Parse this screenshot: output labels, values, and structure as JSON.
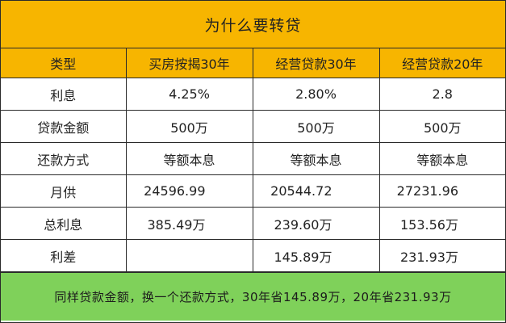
{
  "title": "为什么要转贷",
  "table": {
    "headers": [
      "类型",
      "买房按揭30年",
      "经营贷款30年",
      "经营贷款20年"
    ],
    "rows": [
      [
        "利息",
        "4.25%",
        "2.80%",
        "2.8"
      ],
      [
        "贷款金额",
        "500万",
        "500万",
        "500万"
      ],
      [
        "还款方式",
        "等额本息",
        "等额本息",
        "等额本息"
      ],
      [
        "月供",
        "24596.99",
        "20544.72",
        "27231.96"
      ],
      [
        "总利息",
        "385.49万",
        "239.60万",
        "153.56万"
      ],
      [
        "利差",
        "",
        "145.89万",
        "231.93万"
      ]
    ]
  },
  "footer": "同样贷款金额，换一个还款方式，30年省145.89万，20年省231.93万",
  "colors": {
    "header_bg": "#f7b500",
    "footer_bg": "#7fd15a",
    "border": "#2a2a2a"
  }
}
